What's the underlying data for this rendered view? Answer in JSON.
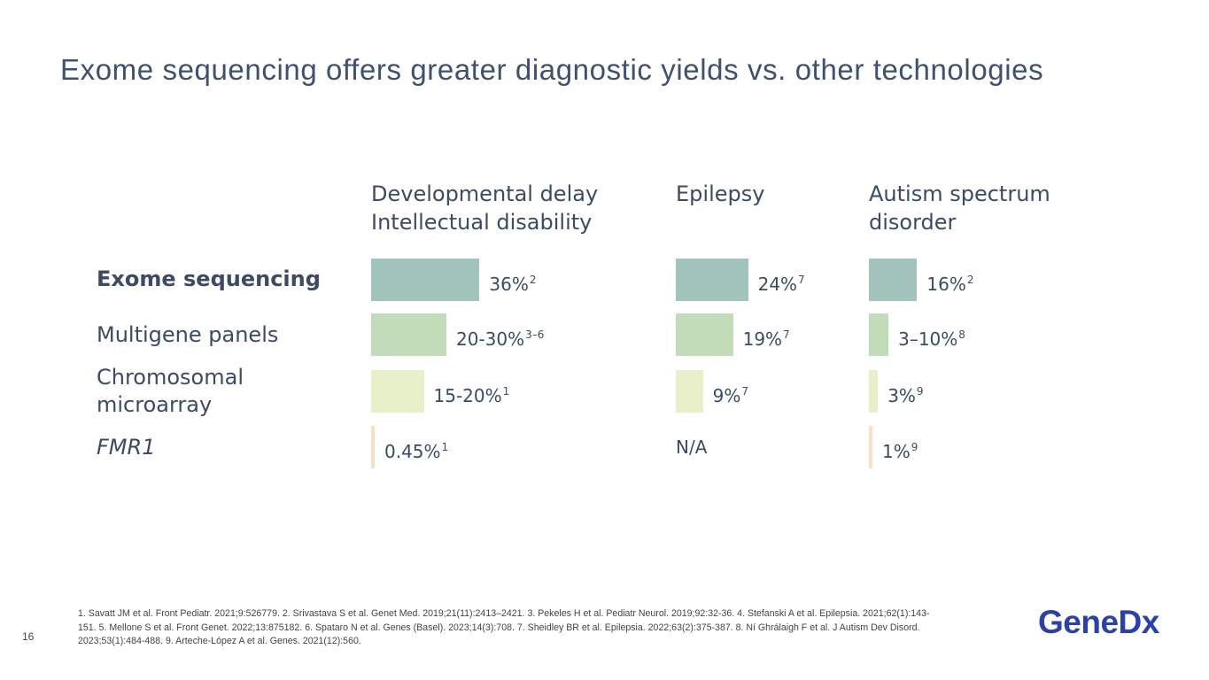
{
  "slide": {
    "title": "Exome sequencing offers greater diagnostic yields vs. other technologies",
    "page_number": "16",
    "references": "1. Savatt JM et al. Front Pediatr. 2021;9:526779. 2. Srivastava S et al. Genet Med. 2019;21(11):2413–2421. 3. Pekeles H et al. Pediatr Neurol. 2019;92:32-36. 4. Stefanski A et al. Epilepsia. 2021;62(1):143-151. 5. Mellone S et al. Front Genet. 2022;13:875182. 6. Spataro N et al. Genes (Basel). 2023;14(3):708. 7. Sheidley BR et al. Epilepsia. 2022;63(2):375-387. 8. Ní Ghrálaigh F et al. J Autism Dev Disord. 2023;53(1):484-488. 9. Arteche-López A et al. Genes. 2021(12):560.",
    "logo_text": "GeneDx"
  },
  "chart_data": {
    "type": "bar",
    "orientation": "horizontal",
    "groups": [
      "Developmental delay\nIntellectual disability",
      "Epilepsy",
      "Autism spectrum\ndisorder"
    ],
    "categories": [
      "Exome sequencing",
      "Multigene panels",
      "Chromosomal\nmicroarray",
      "FMR1"
    ],
    "category_colors": [
      "#a3c4bd",
      "#c2dbb8",
      "#e7f0c9",
      "#f5e2c4"
    ],
    "series": [
      {
        "values": [
          36,
          25,
          17.5,
          0.45
        ],
        "labels": [
          "36%",
          "20-30%",
          "15-20%",
          "0.45%"
        ],
        "refs": [
          "2",
          "3–6",
          "1",
          "1"
        ]
      },
      {
        "values": [
          24,
          19,
          9,
          null
        ],
        "labels": [
          "24%",
          "19%",
          "9%",
          "N/A"
        ],
        "refs": [
          "7",
          "7",
          "7",
          ""
        ]
      },
      {
        "values": [
          16,
          6.5,
          3,
          1
        ],
        "labels": [
          "16%",
          "3–10%",
          "3%",
          "1%"
        ],
        "refs": [
          "2",
          "8",
          "9",
          "9"
        ]
      }
    ]
  }
}
